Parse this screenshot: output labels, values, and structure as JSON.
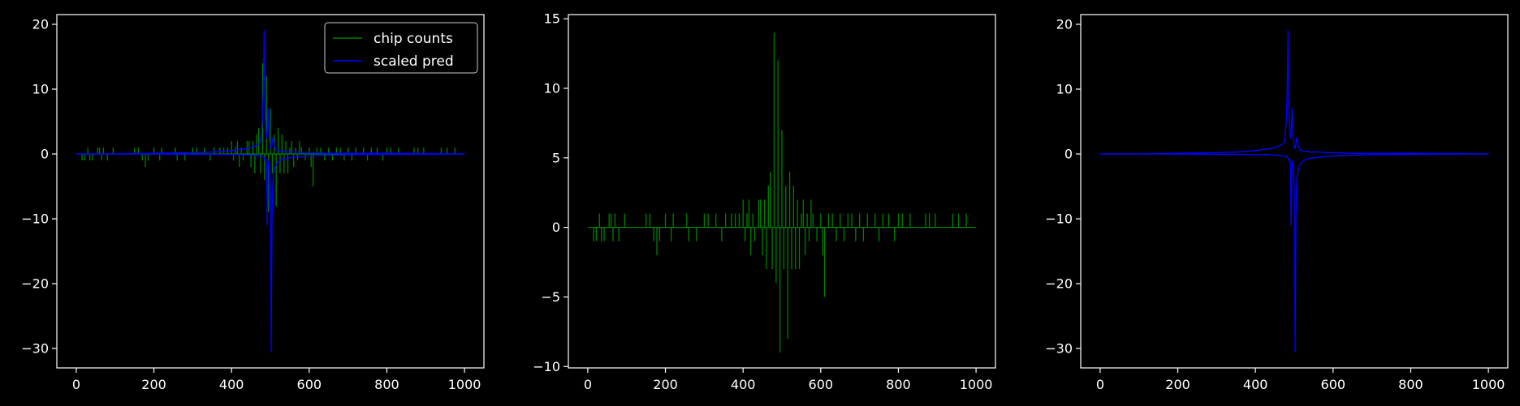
{
  "figure": {
    "background": "#000000",
    "axes_color": "#ffffff"
  },
  "chart_data": [
    {
      "type": "line",
      "xlim": [
        -50,
        1050
      ],
      "ylim": [
        -33,
        21.5
      ],
      "xticks": [
        0,
        200,
        400,
        600,
        800,
        1000
      ],
      "xtick_labels": [
        "0",
        "200",
        "400",
        "600",
        "800",
        "1000"
      ],
      "yticks": [
        -30,
        -20,
        -10,
        0,
        10,
        20
      ],
      "ytick_labels": [
        "−30",
        "−20",
        "−10",
        "0",
        "10",
        "20"
      ],
      "legend": {
        "placement": "top-right",
        "entries": [
          "chip counts",
          "scaled pred"
        ]
      },
      "series": [
        {
          "name": "chip counts",
          "color": "#008000",
          "style": "spikes",
          "x": [
            15,
            22,
            30,
            35,
            42,
            55,
            60,
            65,
            70,
            80,
            95,
            150,
            160,
            170,
            178,
            185,
            200,
            215,
            220,
            255,
            260,
            280,
            300,
            310,
            330,
            345,
            355,
            370,
            380,
            390,
            400,
            405,
            410,
            415,
            420,
            425,
            430,
            440,
            445,
            450,
            455,
            460,
            465,
            470,
            475,
            480,
            485,
            490,
            495,
            500,
            505,
            510,
            515,
            520,
            525,
            530,
            535,
            540,
            545,
            550,
            555,
            560,
            565,
            570,
            575,
            580,
            590,
            600,
            605,
            610,
            620,
            630,
            640,
            650,
            660,
            670,
            680,
            690,
            700,
            710,
            720,
            740,
            750,
            760,
            775,
            790,
            800,
            810,
            830,
            870,
            880,
            895,
            940,
            955,
            975
          ],
          "y": [
            -1,
            -1,
            1,
            -1,
            -1,
            1,
            1,
            -1,
            1,
            -1,
            1,
            1,
            1,
            -1,
            -2,
            -1,
            1,
            -1,
            1,
            1,
            -1,
            -1,
            1,
            1,
            1,
            -1,
            1,
            1,
            1,
            1,
            2,
            -1,
            1,
            2,
            -2,
            1,
            -1,
            2,
            2,
            -2,
            2,
            -3,
            3,
            4,
            -3,
            14,
            -4,
            12,
            -9,
            7,
            -3,
            3,
            -8,
            4,
            -3,
            3,
            -3,
            2,
            -3,
            1,
            2,
            -2,
            1,
            -1,
            2,
            1,
            -1,
            1,
            -2,
            -5,
            1,
            1,
            -1,
            1,
            -1,
            1,
            1,
            -1,
            1,
            -1,
            1,
            1,
            -1,
            1,
            1,
            -1,
            1,
            1,
            1,
            1,
            1,
            1,
            1,
            1,
            1
          ]
        },
        {
          "name": "scaled pred",
          "color": "#0000ff",
          "style": "line",
          "x": [
            0,
            100,
            200,
            300,
            350,
            400,
            420,
            440,
            450,
            460,
            465,
            470,
            474,
            476,
            478,
            480,
            482,
            484,
            486,
            488,
            490,
            492,
            494,
            496,
            498,
            500,
            502,
            504,
            506,
            508,
            510,
            512,
            514,
            516,
            518,
            520,
            525,
            530,
            540,
            560,
            580,
            600,
            650,
            700,
            800,
            900,
            1000,
            800,
            700,
            650,
            600,
            580,
            560,
            540,
            530,
            525,
            520,
            516,
            512,
            508,
            506,
            504,
            502,
            500,
            498,
            496,
            494,
            492,
            490,
            488,
            486,
            484,
            482,
            480,
            475,
            470,
            460,
            450,
            440,
            420,
            400,
            350,
            300,
            200,
            100,
            0
          ],
          "y": [
            0,
            0,
            0.1,
            0.2,
            0.3,
            0.5,
            0.7,
            0.8,
            1.0,
            1.2,
            1.4,
            1.5,
            1.8,
            2.5,
            4.0,
            6.0,
            10.0,
            19.0,
            8.0,
            4.0,
            2.5,
            3.0,
            7.0,
            4.0,
            2.0,
            1.0,
            0.8,
            1.5,
            2.5,
            2.0,
            1.2,
            1.0,
            0.8,
            0.6,
            0.5,
            0.5,
            0.4,
            0.4,
            0.3,
            0.3,
            0.2,
            0.2,
            0.1,
            0.1,
            0.1,
            0.05,
            0,
            -0.05,
            -0.1,
            -0.2,
            -0.3,
            -0.4,
            -0.5,
            -0.7,
            -0.8,
            -1.0,
            -1.2,
            -1.5,
            -2.0,
            -3.0,
            -5.0,
            -10.0,
            -30.5,
            -6.0,
            -2.5,
            -1.5,
            -1.0,
            -11.0,
            -1.5,
            -0.8,
            -1.0,
            -0.6,
            -0.5,
            -0.4,
            -0.3,
            -0.3,
            -0.2,
            -0.2,
            -0.15,
            -0.1,
            -0.1,
            -0.05,
            -0.05,
            0,
            0,
            0
          ]
        }
      ]
    },
    {
      "type": "line",
      "xlim": [
        -50,
        1050
      ],
      "ylim": [
        -10.1,
        15.3
      ],
      "xticks": [
        0,
        200,
        400,
        600,
        800,
        1000
      ],
      "xtick_labels": [
        "0",
        "200",
        "400",
        "600",
        "800",
        "1000"
      ],
      "yticks": [
        -10,
        -5,
        0,
        5,
        10,
        15
      ],
      "ytick_labels": [
        "−10",
        "−5",
        "0",
        "5",
        "10",
        "15"
      ],
      "series": [
        {
          "color": "#008000",
          "style": "spikes",
          "x": [
            15,
            22,
            30,
            35,
            42,
            55,
            60,
            65,
            70,
            80,
            95,
            150,
            160,
            170,
            178,
            185,
            200,
            215,
            220,
            255,
            260,
            280,
            300,
            310,
            330,
            345,
            355,
            370,
            380,
            390,
            400,
            405,
            410,
            415,
            420,
            425,
            430,
            440,
            445,
            450,
            455,
            460,
            465,
            470,
            475,
            480,
            485,
            490,
            495,
            500,
            505,
            510,
            515,
            520,
            525,
            530,
            535,
            540,
            545,
            550,
            555,
            560,
            565,
            570,
            575,
            580,
            590,
            600,
            605,
            610,
            620,
            630,
            640,
            650,
            660,
            670,
            680,
            690,
            700,
            710,
            720,
            740,
            750,
            760,
            775,
            790,
            800,
            810,
            830,
            870,
            880,
            895,
            940,
            955,
            975
          ],
          "y": [
            -1,
            -1,
            1,
            -1,
            -1,
            1,
            1,
            -1,
            1,
            -1,
            1,
            1,
            1,
            -1,
            -2,
            -1,
            1,
            -1,
            1,
            1,
            -1,
            -1,
            1,
            1,
            1,
            -1,
            1,
            1,
            1,
            1,
            2,
            -1,
            1,
            2,
            -2,
            1,
            -1,
            2,
            2,
            -2,
            2,
            -3,
            3,
            4,
            -3,
            14,
            -4,
            12,
            -9,
            7,
            -3,
            3,
            -8,
            4,
            -3,
            3,
            -3,
            2,
            -3,
            1,
            2,
            -2,
            1,
            -1,
            2,
            1,
            -1,
            1,
            -2,
            -5,
            1,
            1,
            -1,
            1,
            -1,
            1,
            1,
            -1,
            1,
            -1,
            1,
            1,
            -1,
            1,
            1,
            -1,
            1,
            1,
            1,
            1,
            1,
            1,
            1,
            1,
            1
          ]
        }
      ]
    },
    {
      "type": "line",
      "xlim": [
        -50,
        1050
      ],
      "ylim": [
        -33,
        21.5
      ],
      "xticks": [
        0,
        200,
        400,
        600,
        800,
        1000
      ],
      "xtick_labels": [
        "0",
        "200",
        "400",
        "600",
        "800",
        "1000"
      ],
      "yticks": [
        -30,
        -20,
        -10,
        0,
        10,
        20
      ],
      "ytick_labels": [
        "−30",
        "−20",
        "−10",
        "0",
        "10",
        "20"
      ],
      "series": [
        {
          "color": "#0000ff",
          "style": "line",
          "x": [
            0,
            100,
            200,
            300,
            350,
            400,
            420,
            440,
            450,
            460,
            465,
            470,
            474,
            476,
            478,
            480,
            482,
            484,
            486,
            488,
            490,
            492,
            494,
            496,
            498,
            500,
            502,
            504,
            506,
            508,
            510,
            512,
            514,
            516,
            518,
            520,
            525,
            530,
            540,
            560,
            580,
            600,
            650,
            700,
            800,
            900,
            1000,
            800,
            700,
            650,
            600,
            580,
            560,
            540,
            530,
            525,
            520,
            516,
            512,
            508,
            506,
            504,
            502,
            500,
            498,
            496,
            494,
            492,
            490,
            488,
            486,
            484,
            482,
            480,
            475,
            470,
            460,
            450,
            440,
            420,
            400,
            350,
            300,
            200,
            100,
            0
          ],
          "y": [
            0,
            0,
            0.1,
            0.2,
            0.3,
            0.5,
            0.7,
            0.8,
            1.0,
            1.2,
            1.4,
            1.5,
            1.8,
            2.5,
            4.0,
            6.0,
            10.0,
            19.0,
            8.0,
            4.0,
            2.5,
            3.0,
            7.0,
            4.0,
            2.0,
            1.0,
            0.8,
            1.5,
            2.5,
            2.0,
            1.2,
            1.0,
            0.8,
            0.6,
            0.5,
            0.5,
            0.4,
            0.4,
            0.3,
            0.3,
            0.2,
            0.2,
            0.1,
            0.1,
            0.1,
            0.05,
            0,
            -0.05,
            -0.1,
            -0.2,
            -0.3,
            -0.4,
            -0.5,
            -0.7,
            -0.8,
            -1.0,
            -1.2,
            -1.5,
            -2.0,
            -3.0,
            -5.0,
            -10.0,
            -30.5,
            -6.0,
            -2.5,
            -1.5,
            -1.0,
            -11.0,
            -1.5,
            -0.8,
            -1.0,
            -0.6,
            -0.5,
            -0.4,
            -0.3,
            -0.3,
            -0.2,
            -0.2,
            -0.15,
            -0.1,
            -0.1,
            -0.05,
            -0.05,
            0,
            0,
            0
          ]
        }
      ]
    }
  ]
}
